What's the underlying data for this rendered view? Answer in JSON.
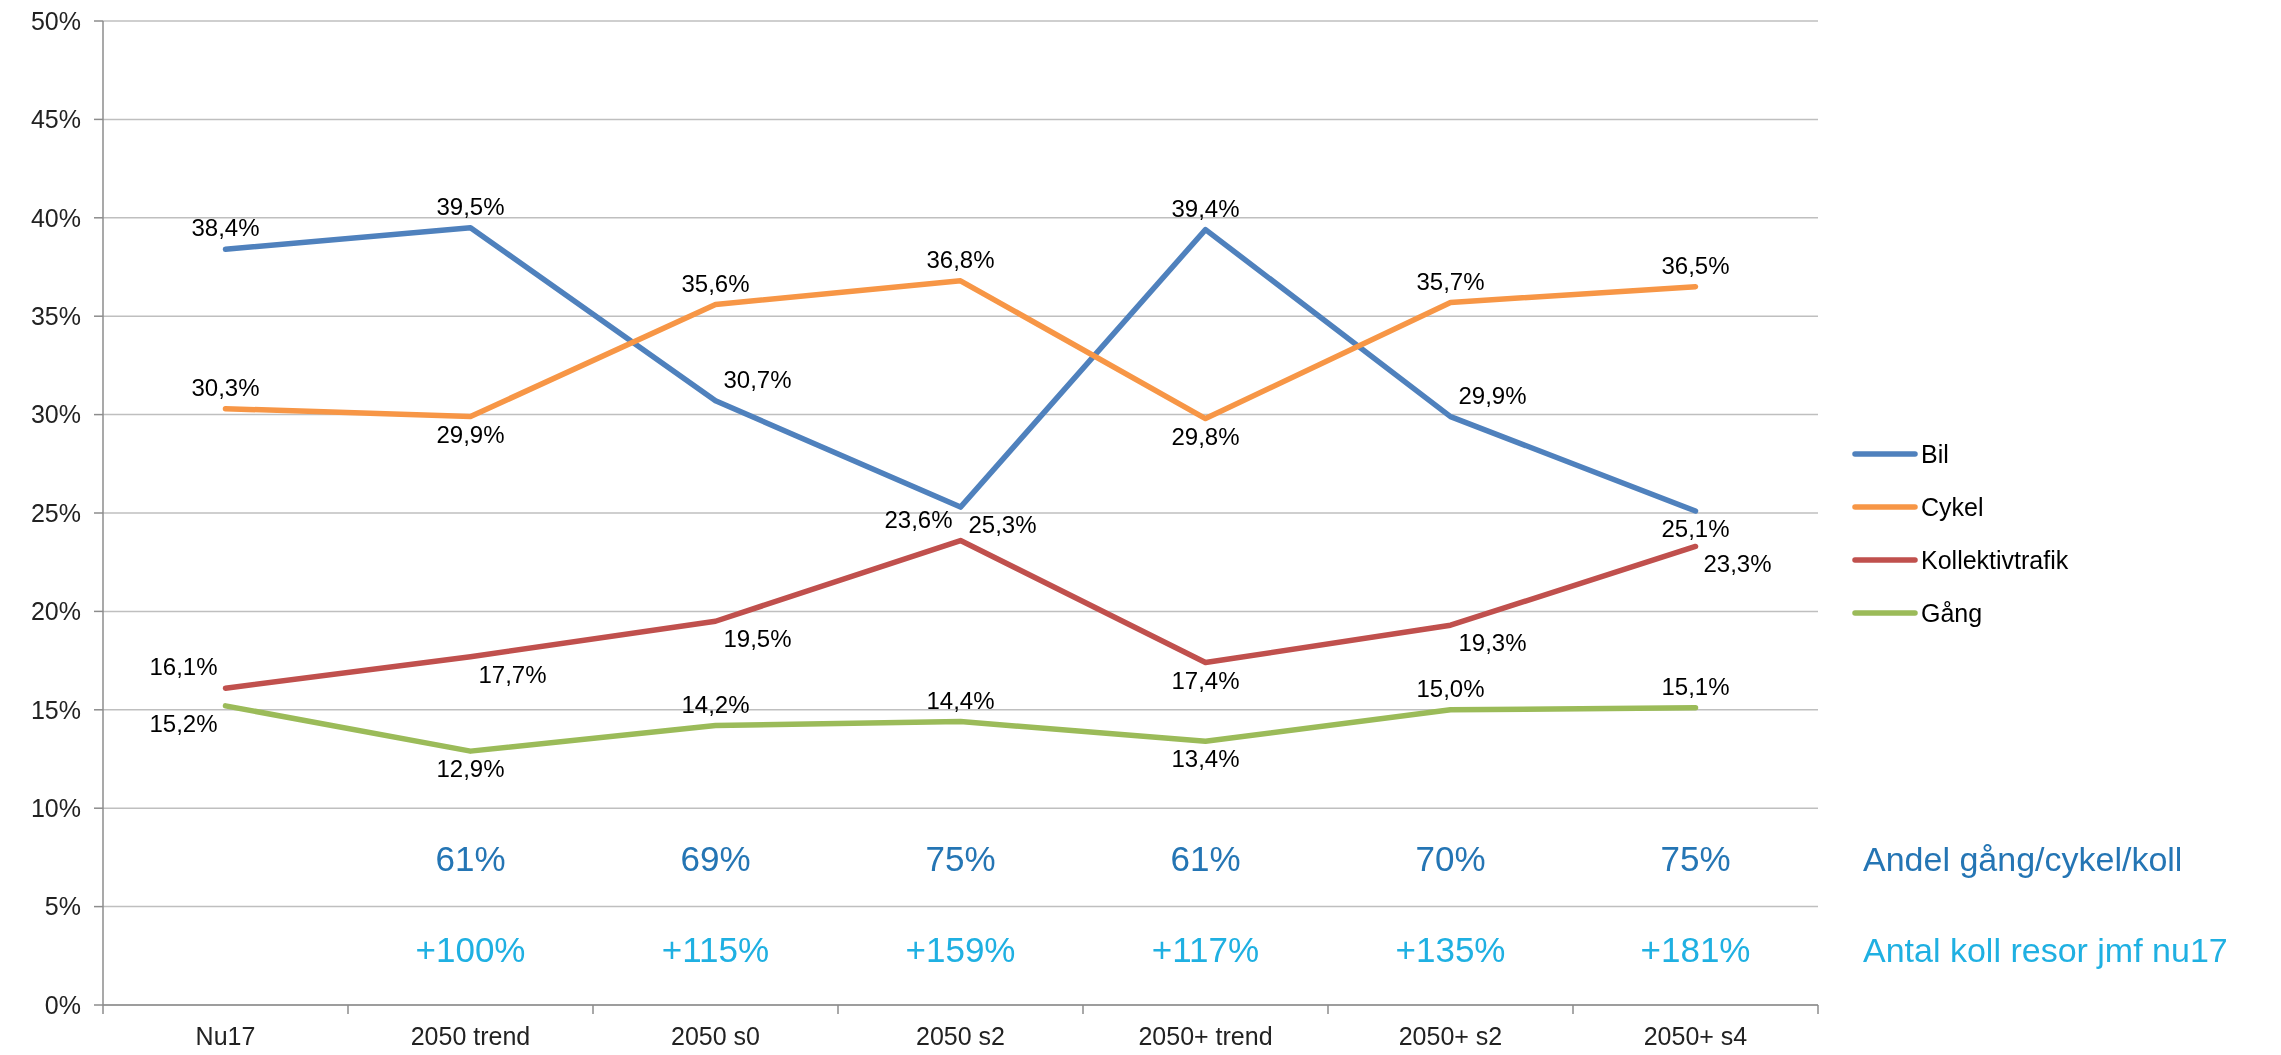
{
  "chart_data": {
    "type": "line",
    "categories": [
      "Nu17",
      "2050 trend",
      "2050 s0",
      "2050 s2",
      "2050+ trend",
      "2050+ s2",
      "2050+ s4"
    ],
    "series": [
      {
        "name": "Bil",
        "color": "#4f81bd",
        "values": [
          38.4,
          39.5,
          30.7,
          25.3,
          39.4,
          29.9,
          25.1
        ],
        "value_labels": [
          "38,4%",
          "39,5%",
          "30,7%",
          "25,3%",
          "39,4%",
          "29,9%",
          "25,1%"
        ]
      },
      {
        "name": "Cykel",
        "color": "#f79646",
        "values": [
          30.3,
          29.9,
          35.6,
          36.8,
          29.8,
          35.7,
          36.5
        ],
        "value_labels": [
          "30,3%",
          "29,9%",
          "35,6%",
          "36,8%",
          "29,8%",
          "35,7%",
          "36,5%"
        ]
      },
      {
        "name": "Kollektivtrafik",
        "color": "#c0504d",
        "values": [
          16.1,
          17.7,
          19.5,
          23.6,
          17.4,
          19.3,
          23.3
        ],
        "value_labels": [
          "16,1%",
          "17,7%",
          "19,5%",
          "23,6%",
          "17,4%",
          "19,3%",
          "23,3%"
        ]
      },
      {
        "name": "Gång",
        "color": "#9bbb59",
        "values": [
          15.2,
          12.9,
          14.2,
          14.4,
          13.4,
          15.0,
          15.1
        ],
        "value_labels": [
          "15,2%",
          "12,9%",
          "14,2%",
          "14,4%",
          "13,4%",
          "15,0%",
          "15,1%"
        ]
      }
    ],
    "ylim": [
      0,
      50
    ],
    "yticks": [
      {
        "value": 0,
        "label": "0%"
      },
      {
        "value": 5,
        "label": "5%"
      },
      {
        "value": 10,
        "label": "10%"
      },
      {
        "value": 15,
        "label": "15%"
      },
      {
        "value": 20,
        "label": "20%"
      },
      {
        "value": 25,
        "label": "25%"
      },
      {
        "value": 30,
        "label": "30%"
      },
      {
        "value": 35,
        "label": "35%"
      },
      {
        "value": 40,
        "label": "40%"
      },
      {
        "value": 45,
        "label": "45%"
      },
      {
        "value": 50,
        "label": "50%"
      }
    ],
    "grid": "y",
    "legend": "right",
    "line_style": "solid",
    "annotations": [
      "61%",
      "69%",
      "75%",
      "61%",
      "70%",
      "75%",
      "Andel gång/cykel/koll",
      "+100%",
      "+115%",
      "+159%",
      "+117%",
      "+135%",
      "+181%",
      "Antal koll resor jmf nu17"
    ]
  }
}
